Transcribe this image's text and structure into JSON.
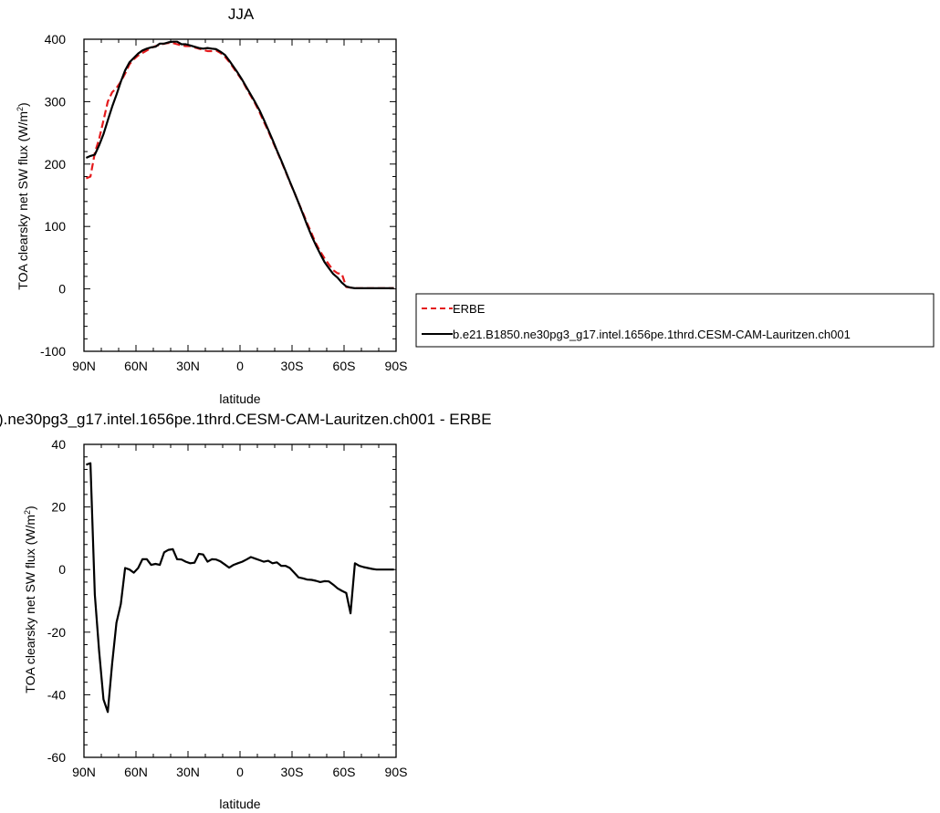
{
  "chart_data": [
    {
      "type": "line",
      "title": "JJA",
      "xlabel": "latitude",
      "ylabel": "TOA clearsky net SW flux (W/m",
      "ylabel_sup": "2",
      "ylabel_tail": ")",
      "xlim": [
        90,
        -90
      ],
      "ylim": [
        -100,
        400
      ],
      "xticks": [
        90,
        60,
        30,
        0,
        -30,
        -60,
        -90
      ],
      "xtick_labels": [
        "90N",
        "60N",
        "30N",
        "0",
        "30S",
        "60S",
        "90S"
      ],
      "yticks": [
        -100,
        0,
        100,
        200,
        300,
        400
      ],
      "ytick_labels": [
        "-100",
        "0",
        "100",
        "200",
        "300",
        "400"
      ],
      "legend": {
        "placement": "right",
        "entries": [
          "ERBE",
          "b.e21.B1850.ne30pg3_g17.intel.1656pe.1thrd.CESM-CAM-Lauritzen.ch001"
        ]
      },
      "series": [
        {
          "name": "ERBE",
          "color": "#e41a1c",
          "dash": "dashed",
          "x": [
            88.75,
            86.25,
            83.75,
            81.25,
            78.75,
            76.25,
            73.75,
            71.25,
            68.75,
            66.25,
            63.75,
            61.25,
            58.75,
            56.25,
            53.75,
            51.25,
            48.75,
            46.25,
            43.75,
            41.25,
            38.75,
            36.25,
            33.75,
            31.25,
            28.75,
            26.25,
            23.75,
            21.25,
            18.75,
            16.25,
            13.75,
            11.25,
            8.75,
            6.25,
            3.75,
            1.25,
            -1.25,
            -3.75,
            -6.25,
            -8.75,
            -11.25,
            -13.75,
            -16.25,
            -18.75,
            -21.25,
            -23.75,
            -26.25,
            -28.75,
            -31.25,
            -33.75,
            -36.25,
            -38.75,
            -41.25,
            -43.75,
            -46.25,
            -48.75,
            -51.25,
            -53.75,
            -56.25,
            -58.75,
            -61.25,
            -63.75,
            -66.25,
            -68.75,
            -71.25,
            -73.75,
            -76.25,
            -78.75,
            -81.25,
            -83.75,
            -86.25,
            -88.75
          ],
          "values": [
            177,
            180,
            218,
            240,
            270,
            300,
            315,
            322,
            332,
            345,
            360,
            368,
            374,
            378,
            382,
            386,
            389,
            391,
            393,
            394,
            394,
            392,
            390,
            389,
            389,
            387,
            385,
            383,
            381,
            381,
            382,
            378,
            372,
            364,
            354,
            344,
            334,
            321,
            309,
            297,
            283,
            268,
            253,
            237,
            221,
            205,
            188,
            171,
            155,
            138,
            122,
            105,
            89,
            73,
            60,
            49,
            39,
            30,
            25,
            24,
            3,
            2,
            1,
            1,
            1,
            1,
            1,
            1,
            1,
            1,
            1,
            1
          ]
        },
        {
          "name": "b.e21.B1850.ne30pg3_g17.intel.1656pe.1thrd.CESM-CAM-Lauritzen.ch001",
          "color": "#000000",
          "dash": "solid",
          "x": [
            88.75,
            86.25,
            83.75,
            81.25,
            78.75,
            76.25,
            73.75,
            71.25,
            68.75,
            66.25,
            63.75,
            61.25,
            58.75,
            56.25,
            53.75,
            51.25,
            48.75,
            46.25,
            43.75,
            41.25,
            38.75,
            36.25,
            33.75,
            31.25,
            28.75,
            26.25,
            23.75,
            21.25,
            18.75,
            16.25,
            13.75,
            11.25,
            8.75,
            6.25,
            3.75,
            1.25,
            -1.25,
            -3.75,
            -6.25,
            -8.75,
            -11.25,
            -13.75,
            -16.25,
            -18.75,
            -21.25,
            -23.75,
            -26.25,
            -28.75,
            -31.25,
            -33.75,
            -36.25,
            -38.75,
            -41.25,
            -43.75,
            -46.25,
            -48.75,
            -51.25,
            -53.75,
            -56.25,
            -58.75,
            -61.25,
            -63.75,
            -66.25,
            -68.75,
            -71.25,
            -73.75,
            -76.25,
            -78.75,
            -81.25,
            -83.75,
            -86.25,
            -88.75
          ],
          "values": [
            210,
            213,
            215,
            230,
            248,
            270,
            292,
            311,
            332,
            350,
            363,
            370,
            377,
            382,
            385,
            387,
            388,
            393,
            393,
            395,
            396,
            396,
            392,
            392,
            390,
            388,
            386,
            385,
            386,
            385,
            384,
            380,
            375,
            366,
            356,
            346,
            335,
            323,
            311,
            299,
            286,
            271,
            255,
            239,
            222,
            206,
            189,
            172,
            155,
            138,
            120,
            102,
            85,
            70,
            56,
            43,
            33,
            24,
            18,
            10,
            4,
            2,
            1,
            1,
            1,
            1,
            1,
            1,
            1,
            1,
            1,
            1
          ]
        }
      ]
    },
    {
      "type": "line",
      "title": ").ne30pg3_g17.intel.1656pe.1thrd.CESM-CAM-Lauritzen.ch001 - ERBE",
      "xlabel": "latitude",
      "ylabel": "TOA clearsky net SW flux (W/m",
      "ylabel_sup": "2",
      "ylabel_tail": ")",
      "xlim": [
        90,
        -90
      ],
      "ylim": [
        -60,
        40
      ],
      "xticks": [
        90,
        60,
        30,
        0,
        -30,
        -60,
        -90
      ],
      "xtick_labels": [
        "90N",
        "60N",
        "30N",
        "0",
        "30S",
        "60S",
        "90S"
      ],
      "yticks": [
        -60,
        -40,
        -20,
        0,
        20,
        40
      ],
      "ytick_labels": [
        "-60",
        "-40",
        "-20",
        "0",
        "20",
        "40"
      ],
      "series": [
        {
          "color": "#000000",
          "dash": "solid",
          "x": [
            88.75,
            86.25,
            83.75,
            81.25,
            78.75,
            76.25,
            73.75,
            71.25,
            68.75,
            66.25,
            63.75,
            61.25,
            58.75,
            56.25,
            53.75,
            51.25,
            48.75,
            46.25,
            43.75,
            41.25,
            38.75,
            36.25,
            33.75,
            31.25,
            28.75,
            26.25,
            23.75,
            21.25,
            18.75,
            16.25,
            13.75,
            11.25,
            8.75,
            6.25,
            3.75,
            1.25,
            -1.25,
            -3.75,
            -6.25,
            -8.75,
            -11.25,
            -13.75,
            -16.25,
            -18.75,
            -21.25,
            -23.75,
            -26.25,
            -28.75,
            -31.25,
            -33.75,
            -36.25,
            -38.75,
            -41.25,
            -43.75,
            -46.25,
            -48.75,
            -51.25,
            -53.75,
            -56.25,
            -58.75,
            -61.25,
            -63.75,
            -66.25,
            -68.75,
            -71.25,
            -73.75,
            -76.25,
            -78.75,
            -81.25,
            -83.75,
            -86.25,
            -88.75
          ],
          "values": [
            33.5,
            34,
            -8,
            -26,
            -41.5,
            -45.5,
            -30,
            -17,
            -11,
            0.5,
            0,
            -1,
            0.5,
            3.3,
            3.3,
            1.5,
            1.8,
            1.5,
            5.5,
            6.3,
            6.5,
            3.3,
            3.2,
            2.5,
            2,
            2.2,
            5,
            4.8,
            2.5,
            3.3,
            3.2,
            2.6,
            1.6,
            0.6,
            1.5,
            2,
            2.5,
            3.2,
            4,
            3.5,
            3,
            2.5,
            2.8,
            2,
            2.3,
            1.2,
            1.2,
            0.5,
            -1,
            -2.5,
            -2.8,
            -3.2,
            -3.3,
            -3.6,
            -4,
            -3.7,
            -3.8,
            -4.8,
            -6,
            -6.8,
            -7.5,
            -14,
            2,
            1.2,
            0.8,
            0.5,
            0.2,
            0,
            0,
            0,
            0,
            0
          ]
        }
      ]
    }
  ]
}
